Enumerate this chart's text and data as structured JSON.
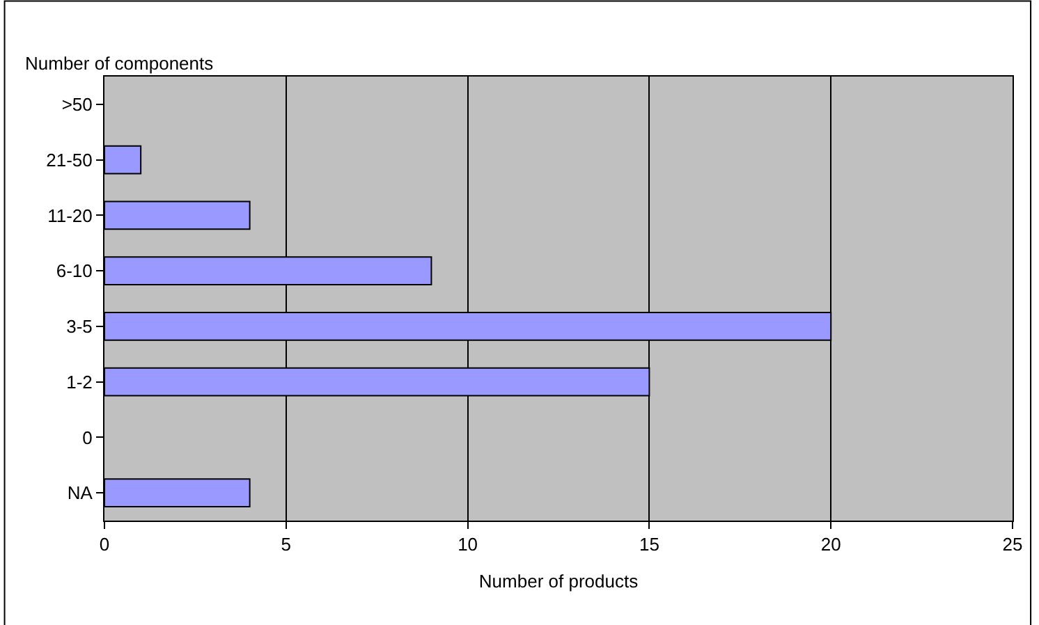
{
  "chart_data": {
    "type": "bar",
    "orientation": "horizontal",
    "xlabel": "Number of products",
    "ylabel": "Number of components",
    "categories": [
      ">50",
      "21-50",
      "11-20",
      "6-10",
      "3-5",
      "1-2",
      "0",
      "NA"
    ],
    "values": [
      0,
      1,
      4,
      9,
      20,
      15,
      0,
      4
    ],
    "color": "#9999ff",
    "xlim": [
      0,
      25
    ],
    "xticks": [
      0,
      5,
      10,
      15,
      20,
      25
    ],
    "grid": "x"
  }
}
